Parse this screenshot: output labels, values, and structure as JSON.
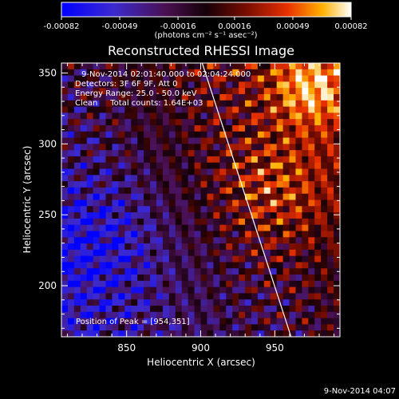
{
  "colorbar": {
    "tick_labels": [
      "-0.00082",
      "-0.00049",
      "-0.00016",
      "0.00016",
      "0.00049",
      "0.00082"
    ],
    "unit_label": "(photons cm⁻² s⁻¹ asec⁻²)",
    "range": [
      -0.00082,
      0.00082
    ]
  },
  "plot": {
    "title": "Reconstructed RHESSI Image",
    "annotations": [
      "9-Nov-2014 02:01:40.000 to 02:04:24.000",
      "Detectors: 3F 6F 9F, Att 0",
      "Energy Range: 25.0 - 50.0 keV",
      "Clean     Total counts: 1.64E+03"
    ],
    "peak_label": "Position of Peak = [954,351]"
  },
  "chart_data": {
    "type": "heatmap",
    "title": "Reconstructed RHESSI Image",
    "xlabel": "Heliocentric X (arcsec)",
    "ylabel": "Heliocentric Y (arcsec)",
    "xlim": [
      806,
      994
    ],
    "ylim": [
      164,
      357
    ],
    "x_ticks": [
      850,
      900,
      950
    ],
    "y_ticks": [
      200,
      250,
      300,
      350
    ],
    "colorbar_range": [
      -0.00082,
      0.00082
    ],
    "peak_position": [
      954,
      351
    ],
    "limb_line": [
      [
        901,
        357
      ],
      [
        961,
        164
      ]
    ],
    "colormap": "blue-purple-red-yellow-white"
  },
  "footer": {
    "timestamp": "9-Nov-2014 04:07"
  }
}
